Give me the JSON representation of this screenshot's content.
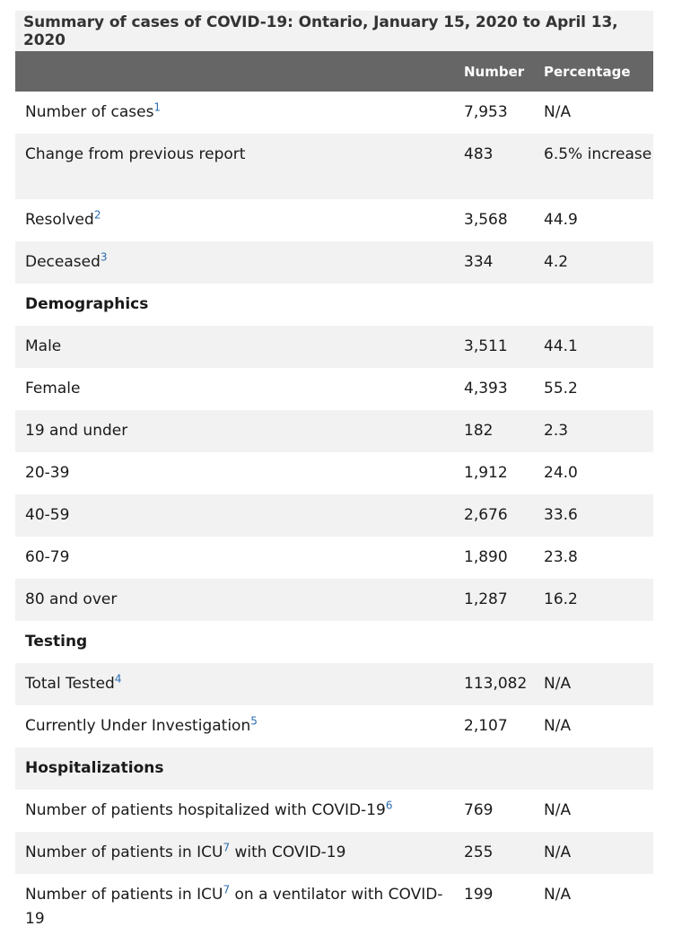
{
  "caption": "Summary of cases of COVID-19: Ontario, January 15, 2020 to April 13, 2020",
  "columns": {
    "label": "",
    "number": "Number",
    "percentage": "Percentage"
  },
  "rows": [
    {
      "label": "Number of cases",
      "footnote": "1",
      "number": "7,953",
      "percentage": "N/A"
    },
    {
      "label": "Change from previous report",
      "footnote": "",
      "number": "483",
      "percentage": "6.5% increase"
    },
    {
      "label": "Resolved",
      "footnote": "2",
      "number": "3,568",
      "percentage": "44.9"
    },
    {
      "label": "Deceased",
      "footnote": "3",
      "number": "334",
      "percentage": "4.2"
    },
    {
      "label": "Demographics",
      "section": true
    },
    {
      "label": "Male",
      "footnote": "",
      "number": "3,511",
      "percentage": "44.1"
    },
    {
      "label": "Female",
      "footnote": "",
      "number": "4,393",
      "percentage": "55.2"
    },
    {
      "label": "19 and under",
      "footnote": "",
      "number": "182",
      "percentage": "2.3"
    },
    {
      "label": "20-39",
      "footnote": "",
      "number": "1,912",
      "percentage": "24.0"
    },
    {
      "label": "40-59",
      "footnote": "",
      "number": "2,676",
      "percentage": "33.6"
    },
    {
      "label": "60-79",
      "footnote": "",
      "number": "1,890",
      "percentage": "23.8"
    },
    {
      "label": "80 and over",
      "footnote": "",
      "number": "1,287",
      "percentage": "16.2"
    },
    {
      "label": "Testing",
      "section": true
    },
    {
      "label": "Total Tested",
      "footnote": "4",
      "number": "113,082",
      "percentage": "N/A"
    },
    {
      "label": "Currently Under Investigation",
      "footnote": "5",
      "number": "2,107",
      "percentage": "N/A"
    },
    {
      "label": "Hospitalizations",
      "section": true
    },
    {
      "label": "Number of patients hospitalized with COVID-19",
      "footnote": "6",
      "number": "769",
      "percentage": "N/A"
    },
    {
      "label_parts": [
        "Number of patients in ICU",
        " with COVID-19"
      ],
      "footnote_mid": "7",
      "number": "255",
      "percentage": "N/A"
    },
    {
      "label_parts": [
        "Number of patients in ICU",
        " on a ventilator with COVID-19"
      ],
      "footnote_mid": "7",
      "number": "199",
      "percentage": "N/A"
    }
  ],
  "colors": {
    "header_bg": "#666666",
    "stripe_bg": "#f2f2f2",
    "link": "#2b6cb0"
  }
}
